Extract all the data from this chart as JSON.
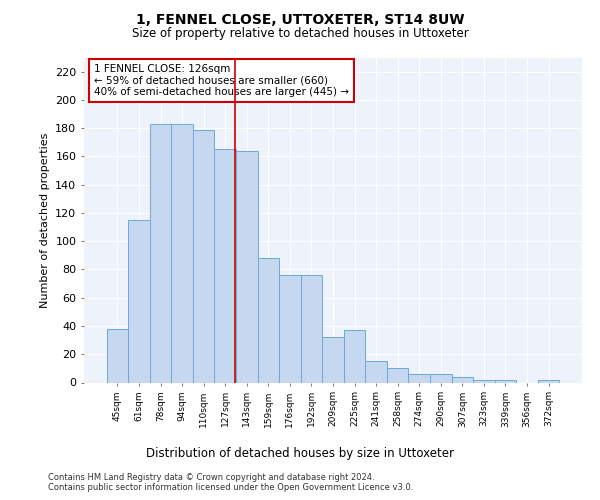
{
  "title": "1, FENNEL CLOSE, UTTOXETER, ST14 8UW",
  "subtitle": "Size of property relative to detached houses in Uttoxeter",
  "xlabel_bottom": "Distribution of detached houses by size in Uttoxeter",
  "ylabel": "Number of detached properties",
  "categories": [
    "45sqm",
    "61sqm",
    "78sqm",
    "94sqm",
    "110sqm",
    "127sqm",
    "143sqm",
    "159sqm",
    "176sqm",
    "192sqm",
    "209sqm",
    "225sqm",
    "241sqm",
    "258sqm",
    "274sqm",
    "290sqm",
    "307sqm",
    "323sqm",
    "339sqm",
    "356sqm",
    "372sqm"
  ],
  "values": [
    38,
    115,
    183,
    183,
    179,
    165,
    164,
    88,
    76,
    76,
    32,
    37,
    15,
    10,
    6,
    6,
    4,
    2,
    2,
    0,
    2
  ],
  "bar_color": "#c5d8f0",
  "bar_edge_color": "#6aaad4",
  "vline_color": "#cc0000",
  "vline_x": 5.45,
  "annotation_text": "1 FENNEL CLOSE: 126sqm\n← 59% of detached houses are smaller (660)\n40% of semi-detached houses are larger (445) →",
  "annotation_box_facecolor": "#ffffff",
  "annotation_box_edgecolor": "#cc0000",
  "ylim": [
    0,
    230
  ],
  "yticks": [
    0,
    20,
    40,
    60,
    80,
    100,
    120,
    140,
    160,
    180,
    200,
    220
  ],
  "footer_line1": "Contains HM Land Registry data © Crown copyright and database right 2024.",
  "footer_line2": "Contains public sector information licensed under the Open Government Licence v3.0.",
  "bg_color": "#ffffff",
  "plot_bg_color": "#edf2fb"
}
